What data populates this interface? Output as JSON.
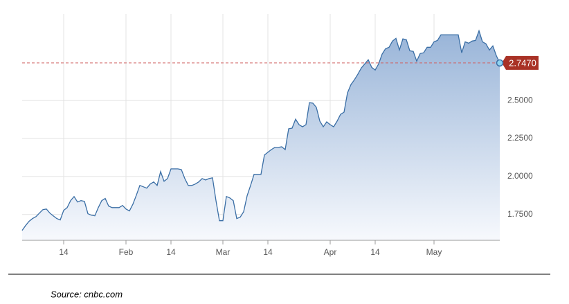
{
  "chart_data": {
    "type": "area",
    "x": [
      2,
      3,
      4,
      5,
      6,
      7,
      8,
      9,
      10,
      11,
      12,
      13,
      14,
      15,
      16,
      17,
      18,
      19,
      20,
      21,
      22,
      23,
      24,
      25,
      26,
      27,
      28,
      29,
      30,
      31,
      32,
      33,
      34,
      35,
      36,
      37,
      38,
      39,
      40,
      41,
      42,
      43,
      44,
      45,
      46,
      47,
      48,
      49,
      50,
      51,
      52,
      53,
      54,
      55,
      56,
      57,
      58,
      59,
      60,
      61,
      62,
      63,
      64,
      65,
      66,
      67,
      68,
      69,
      70,
      71,
      72,
      73,
      74,
      75,
      76,
      77,
      78,
      79,
      80,
      81,
      82,
      83,
      84,
      85,
      86,
      87,
      88,
      89,
      90,
      91,
      92,
      93,
      94,
      95,
      96,
      97,
      98,
      99,
      100,
      101,
      102,
      103,
      104,
      105,
      106,
      107,
      108,
      109,
      110,
      111,
      112,
      113,
      114,
      115,
      116,
      117,
      118,
      119,
      120,
      121,
      122,
      123,
      124,
      125,
      126,
      127,
      128,
      129,
      130,
      131,
      132,
      133,
      134,
      135,
      136,
      137,
      138,
      139,
      140
    ],
    "values": [
      1.645,
      1.677,
      1.705,
      1.723,
      1.736,
      1.759,
      1.782,
      1.786,
      1.759,
      1.741,
      1.723,
      1.714,
      1.777,
      1.795,
      1.841,
      1.868,
      1.832,
      1.841,
      1.836,
      1.755,
      1.745,
      1.741,
      1.795,
      1.841,
      1.855,
      1.805,
      1.795,
      1.795,
      1.795,
      1.809,
      1.786,
      1.773,
      1.818,
      1.877,
      1.941,
      1.932,
      1.923,
      1.95,
      1.964,
      1.941,
      2.032,
      1.968,
      1.986,
      2.05,
      2.05,
      2.05,
      2.045,
      1.986,
      1.941,
      1.941,
      1.95,
      1.964,
      1.986,
      1.977,
      1.986,
      1.991,
      1.841,
      1.709,
      1.709,
      1.868,
      1.859,
      1.841,
      1.723,
      1.732,
      1.768,
      1.873,
      1.941,
      2.014,
      2.014,
      2.014,
      2.141,
      2.159,
      2.177,
      2.191,
      2.191,
      2.195,
      2.177,
      2.314,
      2.318,
      2.377,
      2.341,
      2.327,
      2.341,
      2.486,
      2.482,
      2.455,
      2.364,
      2.327,
      2.359,
      2.341,
      2.327,
      2.364,
      2.409,
      2.423,
      2.55,
      2.605,
      2.636,
      2.673,
      2.714,
      2.741,
      2.768,
      2.718,
      2.7,
      2.741,
      2.805,
      2.841,
      2.85,
      2.891,
      2.909,
      2.832,
      2.905,
      2.9,
      2.827,
      2.823,
      2.759,
      2.809,
      2.814,
      2.85,
      2.85,
      2.886,
      2.895,
      2.932,
      2.932,
      2.932,
      2.932,
      2.932,
      2.932,
      2.814,
      2.886,
      2.877,
      2.891,
      2.895,
      2.959,
      2.886,
      2.873,
      2.832,
      2.859,
      2.795,
      2.747
    ],
    "color": "#3a6ea5",
    "xlim": [
      2,
      140
    ],
    "xticks": [
      {
        "value": 14,
        "label": "14"
      },
      {
        "value": 32,
        "label": "Feb"
      },
      {
        "value": 45,
        "label": "14"
      },
      {
        "value": 60,
        "label": "Mar"
      },
      {
        "value": 73,
        "label": "14"
      },
      {
        "value": 91,
        "label": "Apr"
      },
      {
        "value": 104,
        "label": "14"
      },
      {
        "value": 121,
        "label": "May"
      }
    ],
    "ylim": [
      1.58,
      3.07
    ],
    "yticks": [
      {
        "value": 1.75,
        "label": "1.7500"
      },
      {
        "value": 2,
        "label": "2.0000"
      },
      {
        "value": 2.25,
        "label": "2.2500"
      },
      {
        "value": 2.5,
        "label": "2.5000"
      }
    ],
    "grid": true,
    "last_value": {
      "value": 2.747,
      "label": "2.7470"
    },
    "source": "Source: cnbc.com"
  }
}
